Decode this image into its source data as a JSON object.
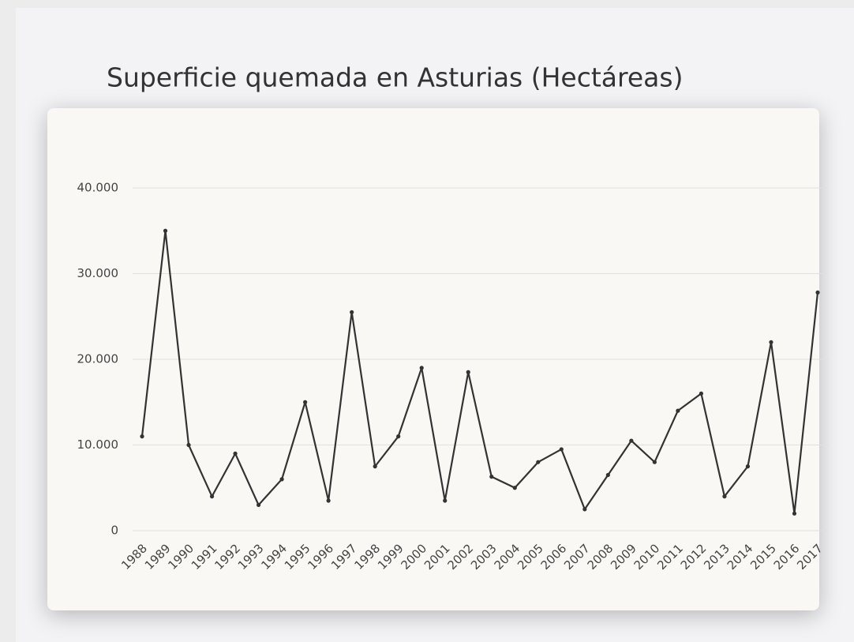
{
  "chart_data": {
    "type": "line",
    "title": "Superficie quemada en Asturias (Hectáreas)",
    "categories": [
      "1988",
      "1989",
      "1990",
      "1991",
      "1992",
      "1993",
      "1994",
      "1995",
      "1996",
      "1997",
      "1998",
      "1999",
      "2000",
      "2001",
      "2002",
      "2003",
      "2004",
      "2005",
      "2006",
      "2007",
      "2008",
      "2009",
      "2010",
      "2011",
      "2012",
      "2013",
      "2014",
      "2015",
      "2016",
      "2017"
    ],
    "series": [
      {
        "name": "Superficie quemada",
        "color": "#333333",
        "values": [
          11000,
          35000,
          10000,
          4000,
          9000,
          3000,
          6000,
          15000,
          3500,
          25500,
          7500,
          11000,
          19000,
          3500,
          18500,
          6300,
          5000,
          8000,
          9500,
          2500,
          6500,
          10500,
          8000,
          14000,
          16000,
          4000,
          7500,
          22000,
          2000,
          27800
        ]
      }
    ],
    "ylim": [
      0,
      40000
    ],
    "yticks": [
      0,
      {
        "value": 10000,
        "label": "10.000"
      },
      {
        "value": 20000,
        "label": "20.000"
      },
      {
        "value": 30000,
        "label": "30.000"
      },
      {
        "value": 40000,
        "label": "40.000"
      }
    ],
    "grid": true
  }
}
